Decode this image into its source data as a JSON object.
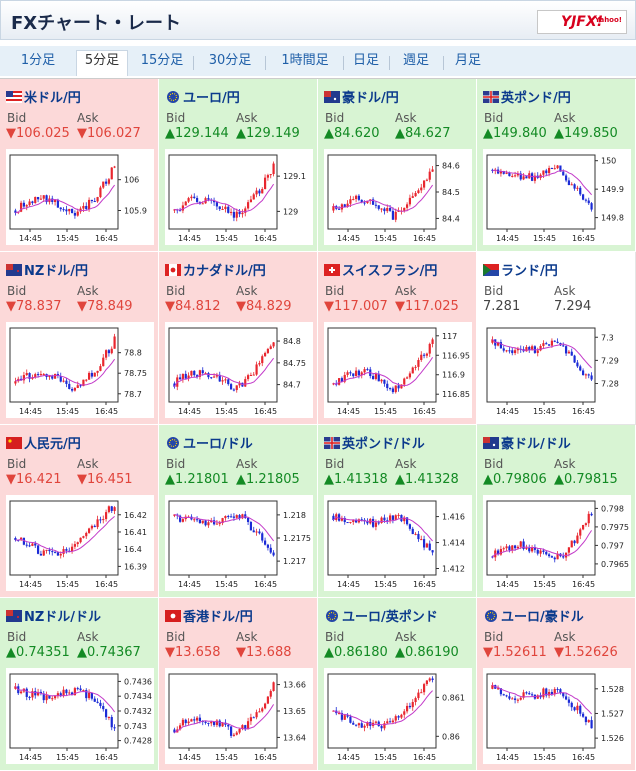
{
  "header": {
    "title": "FXチャート・レート",
    "logo": "YJFX!",
    "logo_sub": "Yahoo!"
  },
  "tabs": [
    {
      "label": "1分足",
      "active": false
    },
    {
      "label": "5分足",
      "active": true
    },
    {
      "label": "15分足",
      "active": false
    },
    {
      "label": "30分足",
      "active": false
    },
    {
      "label": "1時間足",
      "active": false
    },
    {
      "label": "日足",
      "active": false
    },
    {
      "label": "週足",
      "active": false
    },
    {
      "label": "月足",
      "active": false
    }
  ],
  "labels": {
    "bid": "Bid",
    "ask": "Ask"
  },
  "colors": {
    "down_bg": "#fcd9d9",
    "up_bg": "#d8f4d3",
    "down_text": "#e0453c",
    "up_text": "#138a24",
    "link": "#0b3a8c",
    "candle_up": "#e8262e",
    "candle_down": "#1b2bd6",
    "ma": "#c33bc9"
  },
  "chart_data": [
    {
      "name": "米ドル/円",
      "flag": "us",
      "dir": "down",
      "bid": "106.025",
      "ask": "106.027",
      "x_ticks": [
        "14:45",
        "15:45",
        "16:45"
      ],
      "y_ticks": [
        "106",
        "105.9"
      ],
      "y_tick_values": [
        106.0,
        105.9
      ],
      "ylim": [
        105.84,
        106.08
      ],
      "shape": "rise"
    },
    {
      "name": "ユーロ/円",
      "flag": "eu",
      "dir": "up",
      "bid": "129.144",
      "ask": "129.149",
      "x_ticks": [
        "14:45",
        "15:45",
        "16:45"
      ],
      "y_ticks": [
        "129.1",
        "129"
      ],
      "y_tick_values": [
        129.1,
        129.0
      ],
      "ylim": [
        128.95,
        129.16
      ],
      "shape": "rise"
    },
    {
      "name": "豪ドル/円",
      "flag": "au",
      "dir": "up",
      "bid": "84.620",
      "ask": "84.627",
      "x_ticks": [
        "14:45",
        "15:45",
        "16:45"
      ],
      "y_ticks": [
        "84.6",
        "84.5",
        "84.4"
      ],
      "y_tick_values": [
        84.6,
        84.5,
        84.4
      ],
      "ylim": [
        84.36,
        84.64
      ],
      "shape": "rise"
    },
    {
      "name": "英ポンド/円",
      "flag": "gb",
      "dir": "up",
      "bid": "149.840",
      "ask": "149.850",
      "x_ticks": [
        "14:45",
        "15:45",
        "16:45"
      ],
      "y_ticks": [
        "150",
        "149.9",
        "149.8"
      ],
      "y_tick_values": [
        150.0,
        149.9,
        149.8
      ],
      "ylim": [
        149.76,
        150.02
      ],
      "shape": "fall"
    },
    {
      "name": "NZドル/円",
      "flag": "nz",
      "dir": "down",
      "bid": "78.837",
      "ask": "78.849",
      "x_ticks": [
        "14:45",
        "15:45",
        "16:45"
      ],
      "y_ticks": [
        "78.8",
        "78.75",
        "78.7"
      ],
      "y_tick_values": [
        78.8,
        78.75,
        78.7
      ],
      "ylim": [
        78.68,
        78.86
      ],
      "shape": "rise"
    },
    {
      "name": "カナダドル/円",
      "flag": "ca",
      "dir": "down",
      "bid": "84.812",
      "ask": "84.829",
      "x_ticks": [
        "14:45",
        "15:45",
        "16:45"
      ],
      "y_ticks": [
        "84.8",
        "84.75",
        "84.7"
      ],
      "y_tick_values": [
        84.8,
        84.75,
        84.7
      ],
      "ylim": [
        84.66,
        84.83
      ],
      "shape": "rise"
    },
    {
      "name": "スイスフラン/円",
      "flag": "ch",
      "dir": "down",
      "bid": "117.007",
      "ask": "117.025",
      "x_ticks": [
        "14:45",
        "15:45",
        "16:45"
      ],
      "y_ticks": [
        "117",
        "116.95",
        "116.9",
        "116.85"
      ],
      "y_tick_values": [
        117.0,
        116.95,
        116.9,
        116.85
      ],
      "ylim": [
        116.83,
        117.02
      ],
      "shape": "rise"
    },
    {
      "name": "ランド/円",
      "flag": "za",
      "dir": "flat",
      "bid": "7.281",
      "ask": "7.294",
      "x_ticks": [
        "14:45",
        "15:45",
        "16:45"
      ],
      "y_ticks": [
        "7.3",
        "7.29",
        "7.28"
      ],
      "y_tick_values": [
        7.3,
        7.29,
        7.28
      ],
      "ylim": [
        7.272,
        7.304
      ],
      "shape": "fall"
    },
    {
      "name": "人民元/円",
      "flag": "cn",
      "dir": "down",
      "bid": "16.421",
      "ask": "16.451",
      "x_ticks": [
        "14:45",
        "15:45",
        "16:45"
      ],
      "y_ticks": [
        "16.42",
        "16.41",
        "16.4",
        "16.39"
      ],
      "y_tick_values": [
        16.42,
        16.41,
        16.4,
        16.39
      ],
      "ylim": [
        16.385,
        16.428
      ],
      "shape": "vrise"
    },
    {
      "name": "ユーロ/ドル",
      "flag": "eu",
      "dir": "up",
      "bid": "1.21801",
      "ask": "1.21805",
      "x_ticks": [
        "14:45",
        "15:45",
        "16:45"
      ],
      "y_ticks": [
        "1.218",
        "1.2175",
        "1.217"
      ],
      "y_tick_values": [
        1.218,
        1.2175,
        1.217
      ],
      "ylim": [
        1.2167,
        1.2183
      ],
      "shape": "fall"
    },
    {
      "name": "英ポンド/ドル",
      "flag": "gb",
      "dir": "up",
      "bid": "1.41318",
      "ask": "1.41328",
      "x_ticks": [
        "14:45",
        "15:45",
        "16:45"
      ],
      "y_ticks": [
        "1.416",
        "1.414",
        "1.412"
      ],
      "y_tick_values": [
        1.416,
        1.414,
        1.412
      ],
      "ylim": [
        1.4115,
        1.4172
      ],
      "shape": "fall"
    },
    {
      "name": "豪ドル/ドル",
      "flag": "au",
      "dir": "up",
      "bid": "0.79806",
      "ask": "0.79815",
      "x_ticks": [
        "14:45",
        "15:45",
        "16:45"
      ],
      "y_ticks": [
        "0.798",
        "0.7975",
        "0.797",
        "0.7965"
      ],
      "y_tick_values": [
        0.798,
        0.7975,
        0.797,
        0.7965
      ],
      "ylim": [
        0.7962,
        0.7982
      ],
      "shape": "rise"
    },
    {
      "name": "NZドル/ドル",
      "flag": "nz",
      "dir": "up",
      "bid": "0.74351",
      "ask": "0.74367",
      "x_ticks": [
        "14:45",
        "15:45",
        "16:45"
      ],
      "y_ticks": [
        "0.7436",
        "0.7434",
        "0.7432",
        "0.743",
        "0.7428"
      ],
      "y_tick_values": [
        0.7436,
        0.7434,
        0.7432,
        0.743,
        0.7428
      ],
      "ylim": [
        0.7427,
        0.7437
      ],
      "shape": "fall"
    },
    {
      "name": "香港ドル/円",
      "flag": "hk",
      "dir": "down",
      "bid": "13.658",
      "ask": "13.688",
      "x_ticks": [
        "14:45",
        "15:45",
        "16:45"
      ],
      "y_ticks": [
        "13.66",
        "13.65",
        "13.64"
      ],
      "y_tick_values": [
        13.66,
        13.65,
        13.64
      ],
      "ylim": [
        13.636,
        13.664
      ],
      "shape": "rise"
    },
    {
      "name": "ユーロ/英ポンド",
      "flag": "eu",
      "dir": "up",
      "bid": "0.86180",
      "ask": "0.86190",
      "x_ticks": [
        "14:45",
        "15:45",
        "16:45"
      ],
      "y_ticks": [
        "0.861",
        "0.86"
      ],
      "y_tick_values": [
        0.861,
        0.86
      ],
      "ylim": [
        0.8597,
        0.8616
      ],
      "shape": "vrise"
    },
    {
      "name": "ユーロ/豪ドル",
      "flag": "eu",
      "dir": "down",
      "bid": "1.52611",
      "ask": "1.52626",
      "x_ticks": [
        "14:45",
        "15:45",
        "16:45"
      ],
      "y_ticks": [
        "1.528",
        "1.527",
        "1.526"
      ],
      "y_tick_values": [
        1.528,
        1.527,
        1.526
      ],
      "ylim": [
        1.5256,
        1.5286
      ],
      "shape": "fall"
    }
  ]
}
